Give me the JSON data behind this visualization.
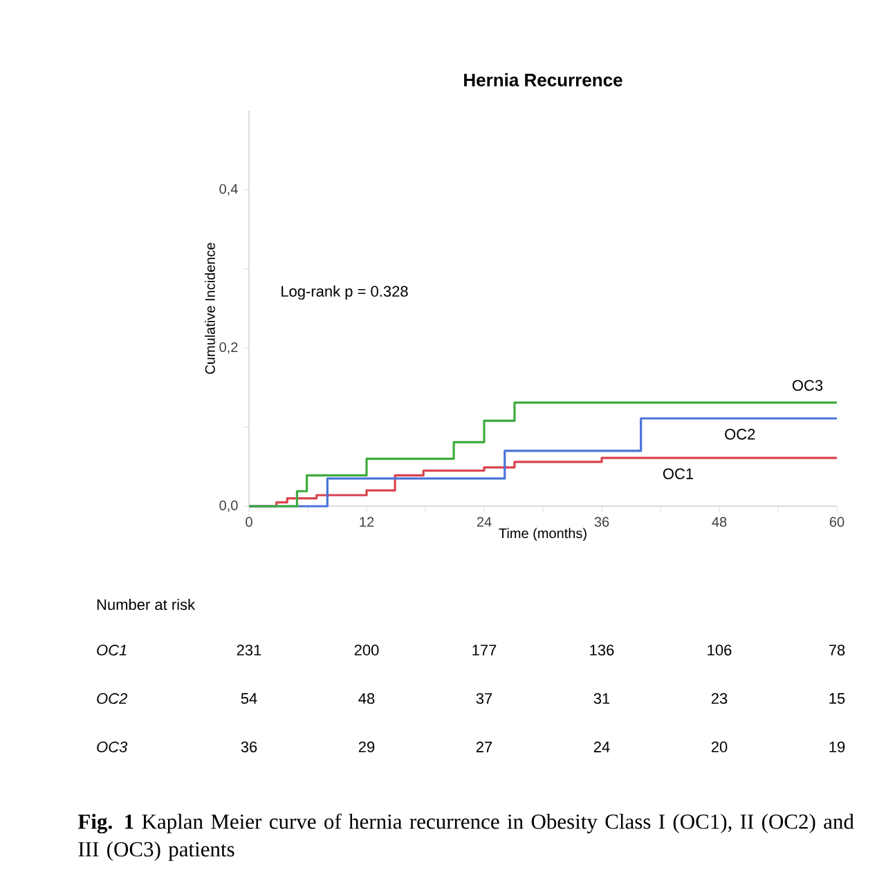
{
  "chart_data": {
    "type": "step",
    "title": "Hernia Recurrence",
    "xlabel": "Time (months)",
    "ylabel": "Cumulative Incidence",
    "xlim": [
      0,
      60
    ],
    "ylim": [
      0,
      0.5
    ],
    "xticks": [
      0,
      {
        "value": 6,
        "label": null
      },
      12,
      {
        "value": 18,
        "label": null
      },
      24,
      {
        "value": 30,
        "label": null
      },
      36,
      {
        "value": 42,
        "label": null
      },
      48,
      {
        "value": 54,
        "label": null
      },
      60
    ],
    "yticks": [
      {
        "value": 0,
        "label": "0,0"
      },
      {
        "value": 0.1,
        "label": null
      },
      {
        "value": 0.2,
        "label": "0,2"
      },
      {
        "value": 0.3,
        "label": null
      },
      {
        "value": 0.4,
        "label": "0,4"
      }
    ],
    "series": [
      {
        "name": "OC1",
        "color": "#d9434e",
        "x": [
          0,
          2.8,
          3.9,
          6.9,
          12,
          14.9,
          17.8,
          24,
          27.1,
          36,
          60
        ],
        "values": [
          0,
          0.005,
          0.01,
          0.014,
          0.02,
          0.039,
          0.045,
          0.049,
          0.056,
          0.061,
          0.061
        ]
      },
      {
        "name": "OC2",
        "color": "#4a74d8",
        "x": [
          0,
          8,
          26.1,
          40,
          60
        ],
        "values": [
          0,
          0.035,
          0.07,
          0.111,
          0.111
        ]
      },
      {
        "name": "OC3",
        "color": "#3dab3d",
        "x": [
          0,
          4.9,
          5.9,
          12,
          20.9,
          24,
          27.1,
          60
        ],
        "values": [
          0,
          0.019,
          0.039,
          0.06,
          0.081,
          0.108,
          0.131,
          0.131
        ]
      }
    ],
    "annotations": [
      "Log-rank p = 0.328",
      "Number at risk",
      "OC1",
      "231",
      "200",
      "177",
      "136",
      "106",
      "78",
      "OC2",
      "54",
      "48",
      "37",
      "31",
      "23",
      "15",
      "OC3",
      "36",
      "29",
      "27",
      "24",
      "20",
      "19",
      "**Fig. 1** Kaplan Meier curve of hernia recurrence in Obesity Class I (OC1), II (OC2) and III (OC3) patients"
    ]
  }
}
